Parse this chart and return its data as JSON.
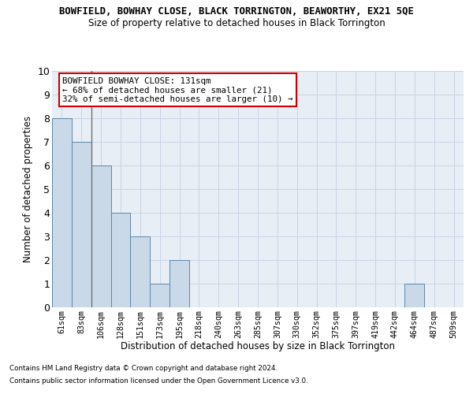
{
  "title": "BOWFIELD, BOWHAY CLOSE, BLACK TORRINGTON, BEAWORTHY, EX21 5QE",
  "subtitle": "Size of property relative to detached houses in Black Torrington",
  "xlabel": "Distribution of detached houses by size in Black Torrington",
  "ylabel": "Number of detached properties",
  "categories": [
    "61sqm",
    "83sqm",
    "106sqm",
    "128sqm",
    "151sqm",
    "173sqm",
    "195sqm",
    "218sqm",
    "240sqm",
    "263sqm",
    "285sqm",
    "307sqm",
    "330sqm",
    "352sqm",
    "375sqm",
    "397sqm",
    "419sqm",
    "442sqm",
    "464sqm",
    "487sqm",
    "509sqm"
  ],
  "values": [
    8,
    7,
    6,
    4,
    3,
    1,
    2,
    0,
    0,
    0,
    0,
    0,
    0,
    0,
    0,
    0,
    0,
    0,
    1,
    0,
    0
  ],
  "bar_color": "#c9d9e8",
  "bar_edge_color": "#5b86a8",
  "ylim": [
    0,
    10
  ],
  "yticks": [
    0,
    1,
    2,
    3,
    4,
    5,
    6,
    7,
    8,
    9,
    10
  ],
  "annotation_text": "BOWFIELD BOWHAY CLOSE: 131sqm\n← 68% of detached houses are smaller (21)\n32% of semi-detached houses are larger (10) →",
  "annotation_box_color": "#ffffff",
  "annotation_edge_color": "#cc0000",
  "footer_line1": "Contains HM Land Registry data © Crown copyright and database right 2024.",
  "footer_line2": "Contains public sector information licensed under the Open Government Licence v3.0.",
  "grid_color": "#c8d4e4",
  "background_color": "#e8eef6"
}
